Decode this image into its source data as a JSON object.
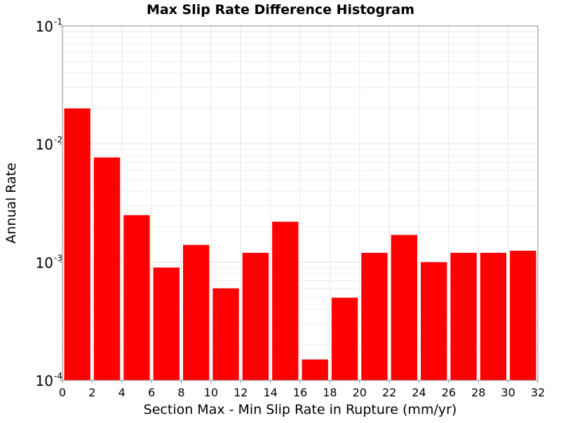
{
  "chart_data": {
    "type": "bar",
    "title": "Max Slip Rate Difference Histogram",
    "xlabel": "Section Max - Min Slip Rate in Rupture (mm/yr)",
    "ylabel": "Annual Rate",
    "x_scale": "linear",
    "y_scale": "log",
    "xlim": [
      0,
      32
    ],
    "ylim": [
      0.0001,
      0.1
    ],
    "x_ticks": [
      0,
      2,
      4,
      6,
      8,
      10,
      12,
      14,
      16,
      18,
      20,
      22,
      24,
      26,
      28,
      30,
      32
    ],
    "y_ticks": [
      {
        "value": 0.0001,
        "base": "10",
        "exp": "-4"
      },
      {
        "value": 0.001,
        "base": "10",
        "exp": "-3"
      },
      {
        "value": 0.01,
        "base": "10",
        "exp": "-2"
      },
      {
        "value": 0.1,
        "base": "10",
        "exp": "-1"
      }
    ],
    "grid": true,
    "bar_color": "#ff0000",
    "bins": [
      {
        "x_start": 0,
        "x_end": 2,
        "value": 0.02
      },
      {
        "x_start": 2,
        "x_end": 4,
        "value": 0.0077
      },
      {
        "x_start": 4,
        "x_end": 6,
        "value": 0.0025
      },
      {
        "x_start": 6,
        "x_end": 8,
        "value": 0.0009
      },
      {
        "x_start": 8,
        "x_end": 10,
        "value": 0.0014
      },
      {
        "x_start": 10,
        "x_end": 12,
        "value": 0.0006
      },
      {
        "x_start": 12,
        "x_end": 14,
        "value": 0.0012
      },
      {
        "x_start": 14,
        "x_end": 16,
        "value": 0.0022
      },
      {
        "x_start": 16,
        "x_end": 18,
        "value": 0.00015
      },
      {
        "x_start": 18,
        "x_end": 20,
        "value": 0.0005
      },
      {
        "x_start": 20,
        "x_end": 22,
        "value": 0.0012
      },
      {
        "x_start": 22,
        "x_end": 24,
        "value": 0.0017
      },
      {
        "x_start": 24,
        "x_end": 26,
        "value": 0.001
      },
      {
        "x_start": 26,
        "x_end": 28,
        "value": 0.0012
      },
      {
        "x_start": 28,
        "x_end": 30,
        "value": 0.0012
      },
      {
        "x_start": 30,
        "x_end": 32,
        "value": 0.00125
      }
    ]
  }
}
